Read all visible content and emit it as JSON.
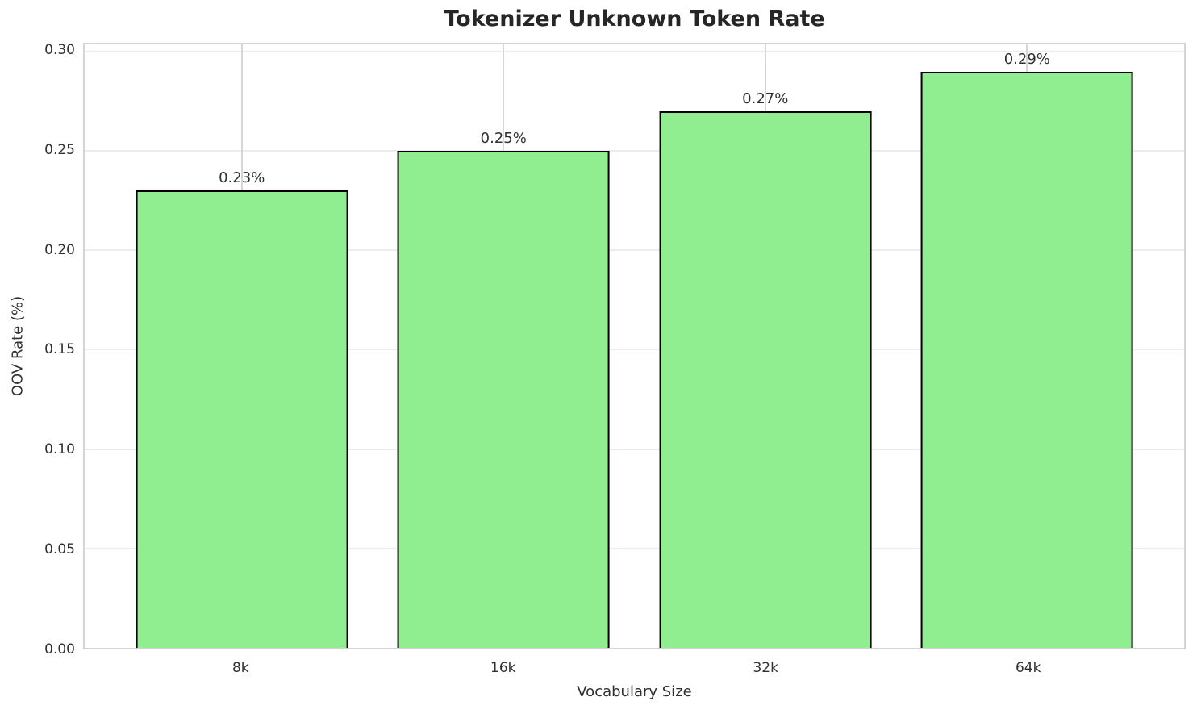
{
  "chart_data": {
    "type": "bar",
    "title": "Tokenizer Unknown Token Rate",
    "xlabel": "Vocabulary Size",
    "ylabel": "OOV Rate (%)",
    "categories": [
      "8k",
      "16k",
      "32k",
      "64k"
    ],
    "values": [
      0.23,
      0.25,
      0.27,
      0.29
    ],
    "bar_labels": [
      "0.23%",
      "0.25%",
      "0.27%",
      "0.29%"
    ],
    "yticks": [
      0.0,
      0.05,
      0.1,
      0.15,
      0.2,
      0.25,
      0.3
    ],
    "ytick_labels": [
      "0.00",
      "0.05",
      "0.10",
      "0.15",
      "0.20",
      "0.25",
      "0.30"
    ],
    "ylim": [
      0,
      0.3036
    ],
    "grid": true,
    "legend": "none",
    "colors": {
      "bar_fill": "#90EE90",
      "bar_edge": "#000000",
      "background": "#ffffff",
      "gridline_horizontal": "#ededed",
      "gridline_vertical": "#d6d6d6",
      "spine": "#d4d4d4",
      "title_text": "#262626",
      "tick_text": "#303030"
    }
  }
}
